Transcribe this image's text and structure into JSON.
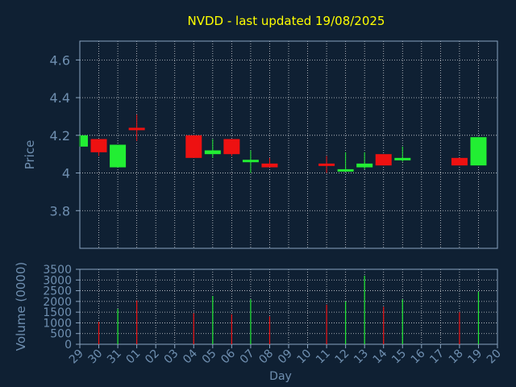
{
  "chart_data": {
    "type": "candlestick",
    "title": "NVDD - last updated 19/08/2025",
    "xlabel": "Day",
    "price_panel": {
      "ylabel": "Price",
      "ylim": [
        3.6,
        4.7
      ],
      "yticks": [
        3.8,
        4,
        4.2,
        4.4,
        4.6
      ],
      "ytick_labels": [
        "3.8",
        "4",
        "4.2",
        "4.4",
        "4.6"
      ],
      "grid": true
    },
    "volume_panel": {
      "ylabel": "Volume (0000)",
      "ylim": [
        0,
        3500
      ],
      "yticks": [
        0,
        500,
        1000,
        1500,
        2000,
        2500,
        3000,
        3500
      ],
      "ytick_labels": [
        "0",
        "500",
        "1000",
        "1500",
        "2000",
        "2500",
        "3000",
        "3500"
      ],
      "grid": true
    },
    "x_tick_labels": [
      "29",
      "30",
      "31",
      "01",
      "02",
      "03",
      "04",
      "05",
      "06",
      "07",
      "08",
      "09",
      "10",
      "11",
      "12",
      "13",
      "14",
      "15",
      "16",
      "17",
      "18",
      "19",
      "20"
    ],
    "candles": [
      {
        "day": "29",
        "open": 4.14,
        "high": 4.2,
        "low": 4.14,
        "close": 4.2,
        "volume": 0
      },
      {
        "day": "30",
        "open": 4.18,
        "high": 4.18,
        "low": 4.09,
        "close": 4.11,
        "volume": 1050
      },
      {
        "day": "31",
        "open": 4.03,
        "high": 4.15,
        "low": 4.03,
        "close": 4.15,
        "volume": 1650
      },
      {
        "day": "01",
        "open": 4.24,
        "high": 4.31,
        "low": 4.17,
        "close": 4.23,
        "volume": 2050
      },
      {
        "day": "04",
        "open": 4.2,
        "high": 4.2,
        "low": 4.08,
        "close": 4.08,
        "volume": 1450
      },
      {
        "day": "05",
        "open": 4.1,
        "high": 4.18,
        "low": 4.08,
        "close": 4.12,
        "volume": 2250
      },
      {
        "day": "06",
        "open": 4.18,
        "high": 4.18,
        "low": 4.09,
        "close": 4.1,
        "volume": 1400
      },
      {
        "day": "07",
        "open": 4.06,
        "high": 4.12,
        "low": 4.0,
        "close": 4.07,
        "volume": 2100
      },
      {
        "day": "08",
        "open": 4.05,
        "high": 4.08,
        "low": 4.03,
        "close": 4.03,
        "volume": 1300
      },
      {
        "day": "11",
        "open": 4.05,
        "high": 4.09,
        "low": 4.0,
        "close": 4.04,
        "volume": 1850
      },
      {
        "day": "12",
        "open": 4.01,
        "high": 4.11,
        "low": 4.01,
        "close": 4.02,
        "volume": 2000
      },
      {
        "day": "13",
        "open": 4.03,
        "high": 4.11,
        "low": 4.02,
        "close": 4.05,
        "volume": 3200
      },
      {
        "day": "14",
        "open": 4.1,
        "high": 4.1,
        "low": 4.04,
        "close": 4.04,
        "volume": 1750
      },
      {
        "day": "15",
        "open": 4.07,
        "high": 4.14,
        "low": 4.06,
        "close": 4.08,
        "volume": 2100
      },
      {
        "day": "18",
        "open": 4.08,
        "high": 4.08,
        "low": 4.04,
        "close": 4.04,
        "volume": 1500
      },
      {
        "day": "19",
        "open": 4.04,
        "high": 4.19,
        "low": 4.04,
        "close": 4.19,
        "volume": 2450
      }
    ],
    "colors": {
      "background": "#0f2033",
      "up": "#22ee33",
      "down": "#ee1111",
      "text": "#6f8fb0",
      "title": "#ffff00",
      "axis": "#8aa4c0",
      "grid": "#ffffff"
    }
  }
}
